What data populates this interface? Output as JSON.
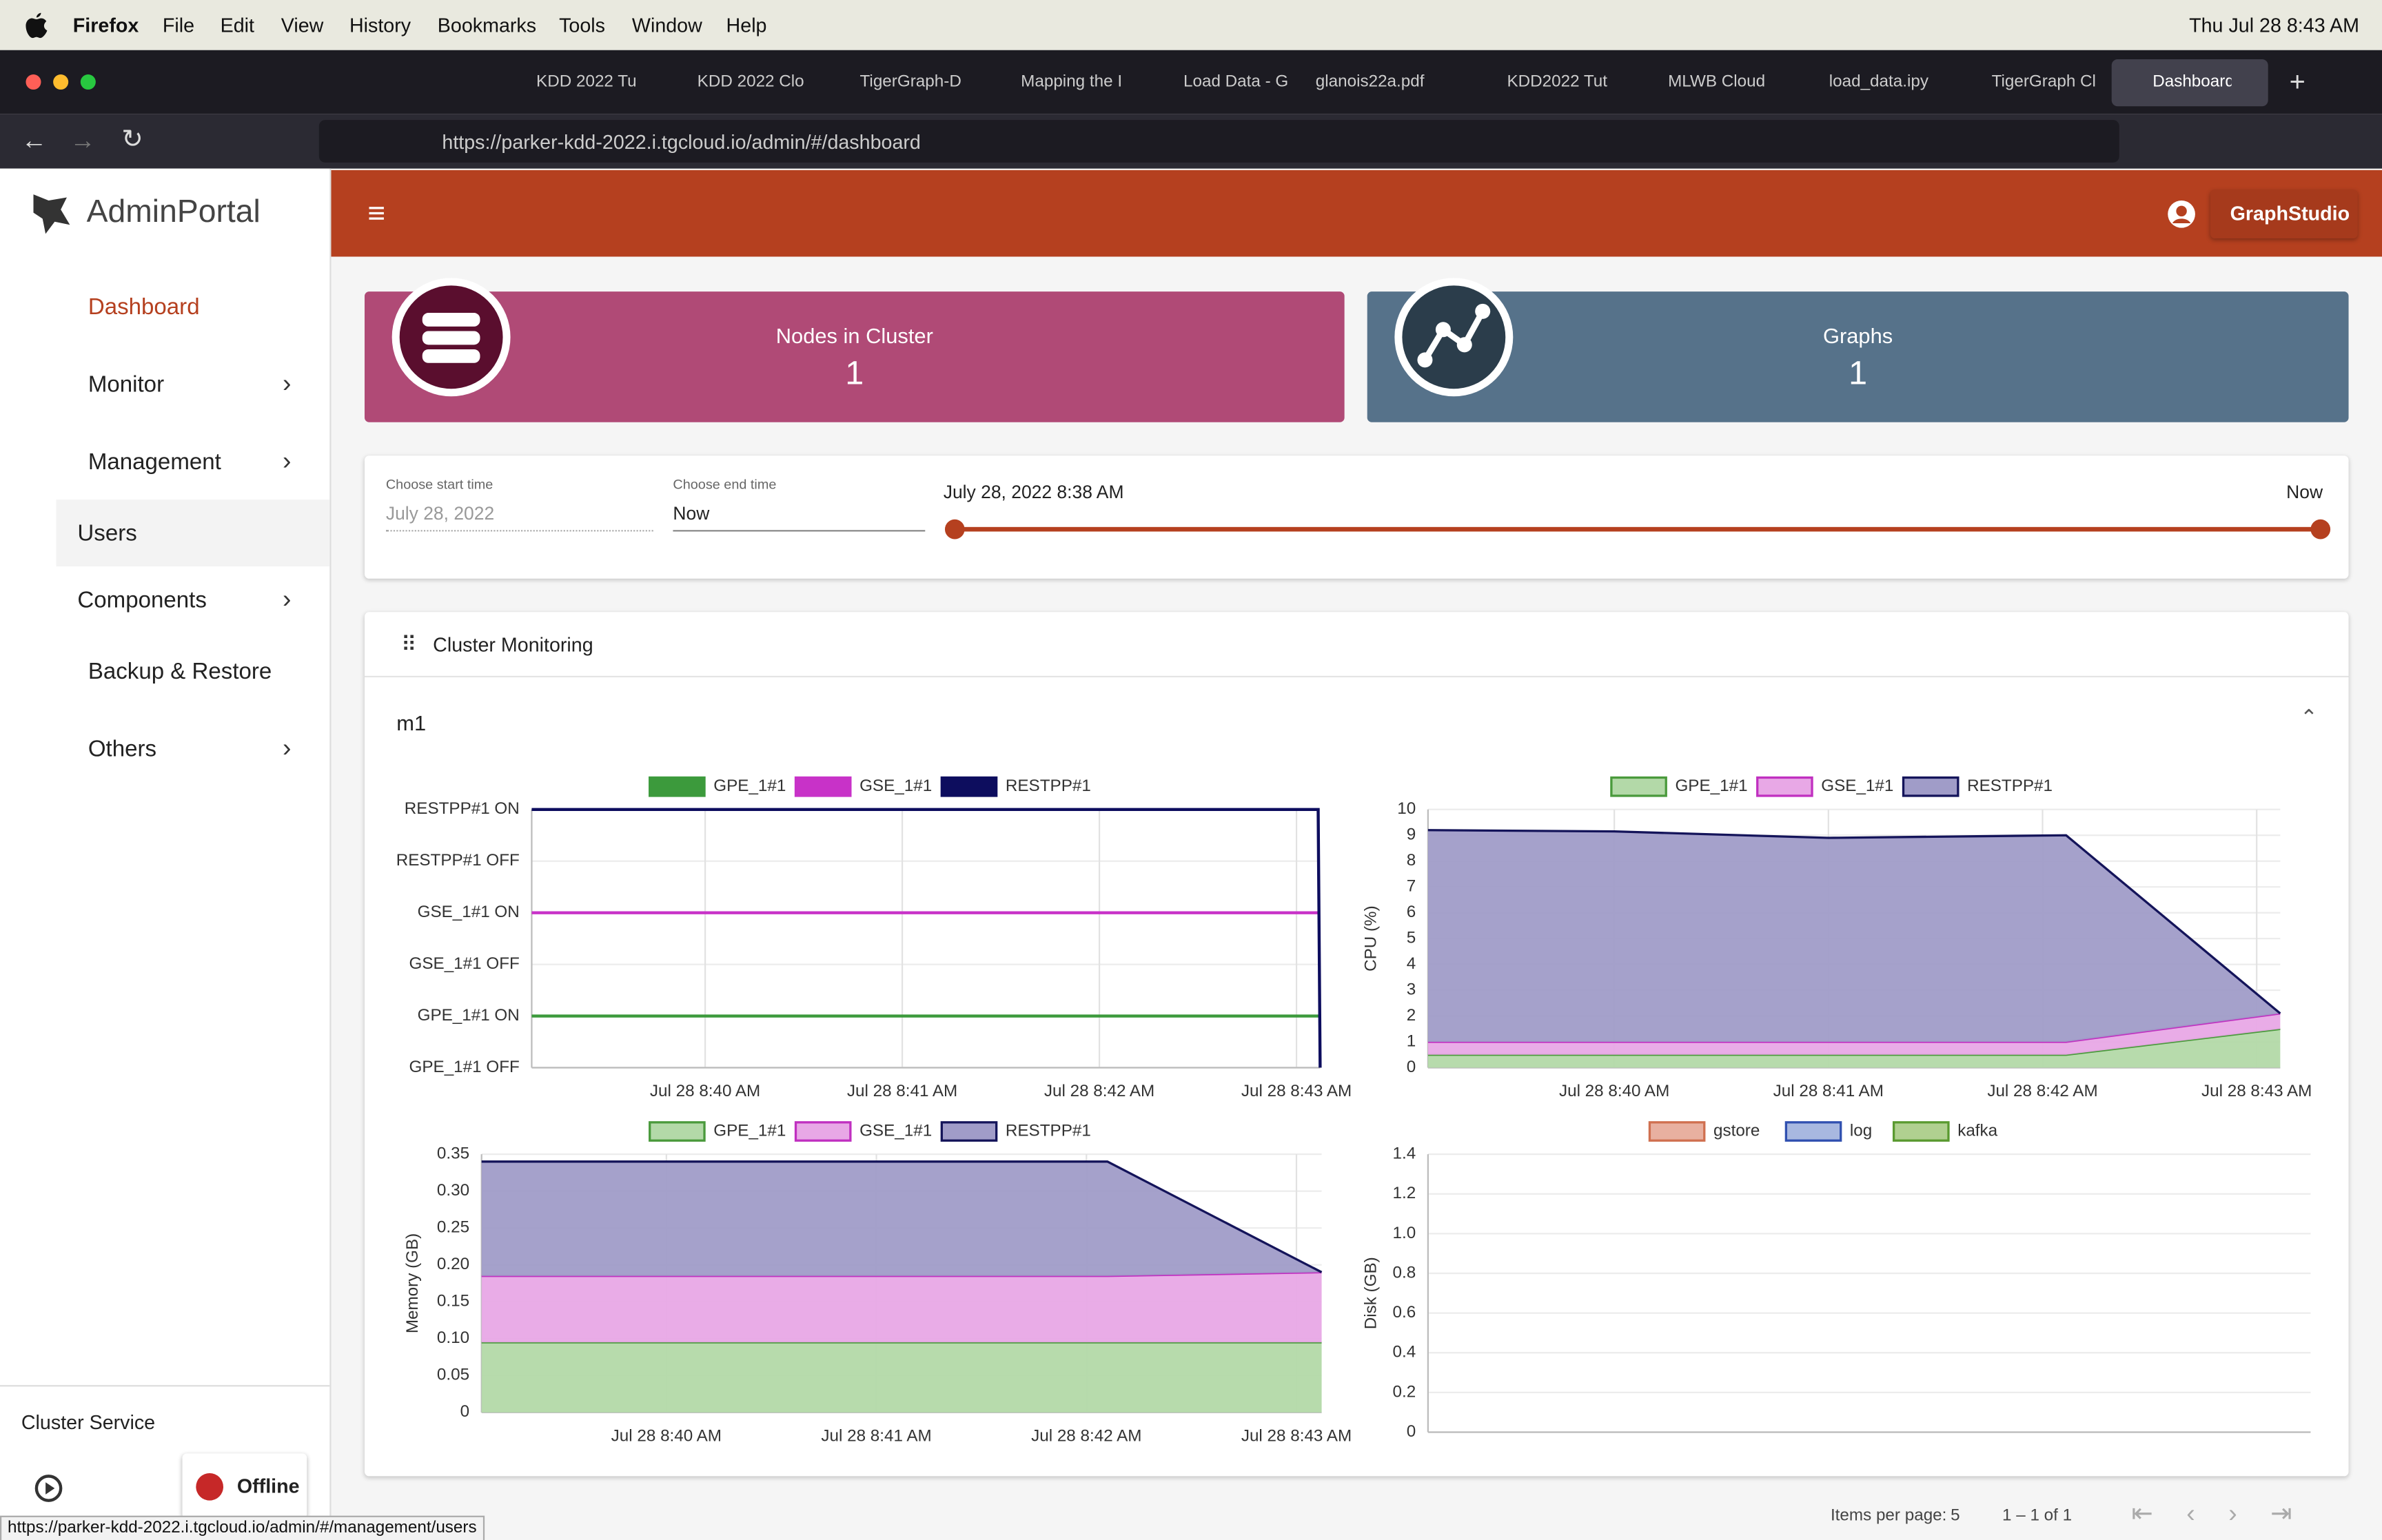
{
  "menubar": {
    "app": "Firefox",
    "items": [
      "File",
      "Edit",
      "View",
      "History",
      "Bookmarks",
      "Tools",
      "Window",
      "Help"
    ],
    "clock": "Thu Jul 28  8:43 AM"
  },
  "tabs": [
    "KDD 2022 Tu",
    "KDD 2022 Clo",
    "TigerGraph-D",
    "Mapping the I",
    "Load Data - G",
    "glanois22a.pdf",
    "KDD2022 Tut",
    "MLWB Cloud",
    "load_data.ipy",
    "TigerGraph Cl",
    "Dashboard"
  ],
  "url": "https://parker-kdd-2022.i.tgcloud.io/admin/#/dashboard",
  "sidebar": {
    "brand": "AdminPortal",
    "items": [
      "Dashboard",
      "Monitor",
      "Management",
      "Users",
      "Components",
      "Backup & Restore",
      "Others"
    ],
    "cluster_service": "Cluster Service",
    "status": "Offline"
  },
  "header": {
    "button": "GraphStudio"
  },
  "cards": [
    {
      "label": "Nodes in Cluster",
      "value": 1
    },
    {
      "label": "Graphs",
      "value": 1
    }
  ],
  "time": {
    "start_label": "Choose start time",
    "start": "July 28, 2022",
    "end_label": "Choose end time",
    "end": "Now",
    "range_start": "July 28, 2022 8:38 AM",
    "range_end": "Now"
  },
  "section": {
    "title": "Cluster Monitoring",
    "node": "m1"
  },
  "chart_data": [
    {
      "type": "line",
      "legend": "top",
      "grid": true,
      "x": [
        39.12,
        43.11,
        43.12
      ],
      "xlim": [
        39.12,
        43.12
      ],
      "xticks": [
        {
          "value": 40,
          "label": "Jul 28 8:40 AM"
        },
        {
          "value": 41,
          "label": "Jul 28 8:41 AM"
        },
        {
          "value": 42,
          "label": "Jul 28 8:42 AM"
        },
        {
          "value": 43,
          "label": "Jul 28 8:43 AM"
        }
      ],
      "ylim": [
        0,
        5
      ],
      "yticks": [
        {
          "value": 0,
          "label": "GPE_1#1 OFF"
        },
        {
          "value": 1,
          "label": "GPE_1#1 ON"
        },
        {
          "value": 2,
          "label": "GSE_1#1 OFF"
        },
        {
          "value": 3,
          "label": "GSE_1#1 ON"
        },
        {
          "value": 4,
          "label": "RESTPP#1 OFF"
        },
        {
          "value": 5,
          "label": "RESTPP#1 ON"
        }
      ],
      "series": [
        {
          "name": "GPE_1#1",
          "color": "#3c9a3c",
          "values": [
            1,
            1,
            1
          ]
        },
        {
          "name": "GSE_1#1",
          "color": "#c832c8",
          "values": [
            3,
            3,
            3
          ]
        },
        {
          "name": "RESTPP#1",
          "color": "#0d0d5e",
          "values": [
            5,
            5,
            0
          ]
        }
      ]
    },
    {
      "type": "area",
      "stacked": true,
      "legend": "top",
      "grid": true,
      "ylabel": "CPU (%)",
      "x": [
        39.13,
        40,
        41,
        42.11,
        43.11
      ],
      "xlim": [
        39.13,
        43.11
      ],
      "xticks": [
        {
          "value": 40,
          "label": "Jul 28 8:40 AM"
        },
        {
          "value": 41,
          "label": "Jul 28 8:41 AM"
        },
        {
          "value": 42,
          "label": "Jul 28 8:42 AM"
        },
        {
          "value": 43,
          "label": "Jul 28 8:43 AM"
        }
      ],
      "ylim": [
        0,
        10
      ],
      "yticks": [
        0,
        1,
        2,
        3,
        4,
        5,
        6,
        7,
        8,
        9,
        10
      ],
      "series": [
        {
          "name": "GPE_1#1",
          "color": "#4a9a3c",
          "fill": "#b3d9a8",
          "values": [
            0.5,
            0.5,
            0.5,
            0.5,
            1.5
          ]
        },
        {
          "name": "GSE_1#1",
          "color": "#c030c0",
          "fill": "#e8a8e6",
          "values": [
            0.5,
            0.5,
            0.5,
            0.5,
            0.6
          ]
        },
        {
          "name": "RESTPP#1",
          "color": "#14145a",
          "fill": "#a09cc8",
          "values": [
            8.2,
            8.15,
            7.9,
            8.0,
            0
          ]
        }
      ]
    },
    {
      "type": "area",
      "stacked": true,
      "legend": "top",
      "grid": true,
      "ylabel": "Memory (GB)",
      "x": [
        39.12,
        42.1,
        43.12
      ],
      "xlim": [
        39.12,
        43.12
      ],
      "xticks": [
        {
          "value": 40,
          "label": "Jul 28 8:40 AM"
        },
        {
          "value": 41,
          "label": "Jul 28 8:41 AM"
        },
        {
          "value": 42,
          "label": "Jul 28 8:42 AM"
        },
        {
          "value": 43,
          "label": "Jul 28 8:43 AM"
        }
      ],
      "ylim": [
        0,
        0.35
      ],
      "yticks": [
        0,
        0.05,
        {
          "value": 0.1,
          "label": "0.10"
        },
        0.15,
        {
          "value": 0.2,
          "label": "0.20"
        },
        0.25,
        {
          "value": 0.3,
          "label": "0.30"
        },
        0.35
      ],
      "series": [
        {
          "name": "GPE_1#1",
          "color": "#4a9a3c",
          "fill": "#b3d9a8",
          "values": [
            0.095,
            0.095,
            0.095
          ]
        },
        {
          "name": "GSE_1#1",
          "color": "#c030c0",
          "fill": "#e8a8e6",
          "values": [
            0.09,
            0.09,
            0.095
          ]
        },
        {
          "name": "RESTPP#1",
          "color": "#14145a",
          "fill": "#a09cc8",
          "values": [
            0.155,
            0.155,
            0
          ]
        }
      ]
    },
    {
      "type": "area",
      "stacked": true,
      "legend": "top",
      "grid": true,
      "ylabel": "Disk (GB)",
      "x": [],
      "ylim": [
        0,
        1.4
      ],
      "yticks": [
        0,
        0.2,
        0.4,
        0.6,
        0.8,
        {
          "value": 1,
          "label": "1.0"
        },
        1.2,
        1.4
      ],
      "series": [
        {
          "name": "gstore",
          "color": "#d07050",
          "fill": "#e8b0a0",
          "values": []
        },
        {
          "name": "log",
          "color": "#3050b0",
          "fill": "#a8b8e0",
          "values": []
        },
        {
          "name": "kafka",
          "color": "#5a9a30",
          "fill": "#b0d090",
          "values": []
        }
      ]
    }
  ],
  "status_url": "https://parker-kdd-2022.i.tgcloud.io/admin/#/management/users",
  "pagination": {
    "label": "Items per page:",
    "size": "5",
    "range": "1 – 1 of 1"
  }
}
